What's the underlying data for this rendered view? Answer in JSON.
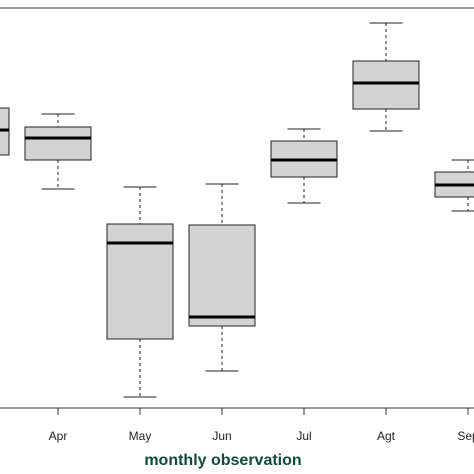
{
  "chart_data": {
    "type": "box",
    "x_label": "monthly observation",
    "categories": [
      null,
      "Apr",
      "May",
      "Jun",
      "Jul",
      "Agt",
      "Sep"
    ],
    "min": [
      253,
      219,
      11,
      37,
      205,
      277,
      197
    ],
    "q1": [
      253,
      248,
      69,
      82,
      231,
      299,
      211
    ],
    "median": [
      278,
      270,
      165,
      91,
      248,
      325,
      223
    ],
    "q3": [
      300,
      281,
      184,
      183,
      267,
      347,
      236
    ],
    "max": [
      300,
      294,
      221,
      224,
      279,
      385,
      248
    ],
    "color": "#d3d3d3",
    "ylim": [
      0,
      400
    ]
  }
}
